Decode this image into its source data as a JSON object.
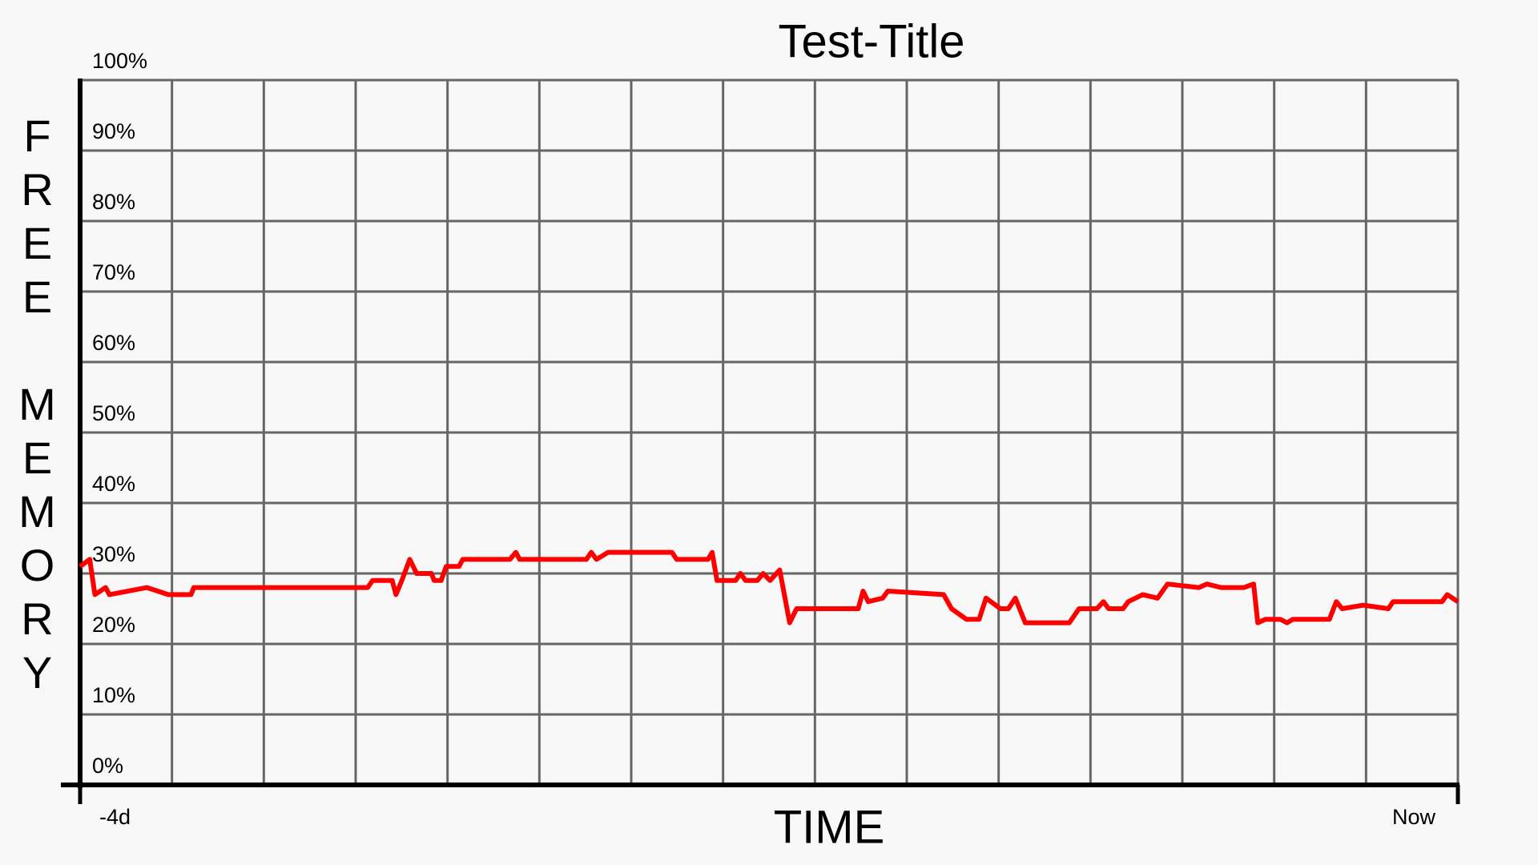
{
  "chart_data": {
    "type": "line",
    "title": "Test-Title",
    "x_label": "TIME",
    "y_label": "FREE MEMORY",
    "xlim": [
      -4,
      0
    ],
    "xticks": [
      {
        "value": -4,
        "label": "-4d"
      },
      {
        "value": 0,
        "label": "Now"
      }
    ],
    "ylim": [
      0,
      100
    ],
    "yticks": [
      {
        "value": 0,
        "label": "0%"
      },
      {
        "value": 10,
        "label": "10%"
      },
      {
        "value": 20,
        "label": "20%"
      },
      {
        "value": 30,
        "label": "30%"
      },
      {
        "value": 40,
        "label": "40%"
      },
      {
        "value": 50,
        "label": "50%"
      },
      {
        "value": 60,
        "label": "60%"
      },
      {
        "value": 70,
        "label": "70%"
      },
      {
        "value": 80,
        "label": "80%"
      },
      {
        "value": 90,
        "label": "90%"
      },
      {
        "value": 100,
        "label": "100%"
      }
    ],
    "grid": true,
    "x": [
      -4,
      -3.972,
      -3.957,
      -3.926,
      -3.915,
      -3.806,
      -3.744,
      -3.678,
      -3.67,
      -3.165,
      -3.151,
      -3.094,
      -3.083,
      -3.066,
      -3.043,
      -3.023,
      -2.98,
      -2.972,
      -2.952,
      -2.937,
      -2.9,
      -2.889,
      -2.752,
      -2.735,
      -2.724,
      -2.53,
      -2.516,
      -2.501,
      -2.467,
      -2.282,
      -2.268,
      -2.177,
      -2.165,
      -2.151,
      -2.097,
      -2.083,
      -2.068,
      -2.034,
      -2.017,
      -1.997,
      -1.969,
      -1.94,
      -1.92,
      -1.741,
      -1.727,
      -1.712,
      -1.67,
      -1.655,
      -1.493,
      -1.47,
      -1.427,
      -1.39,
      -1.37,
      -1.342,
      -1.328,
      -1.305,
      -1.285,
      -1.256,
      -1.128,
      -1.1,
      -1.048,
      -1.029,
      -1.014,
      -0.972,
      -0.957,
      -0.915,
      -0.872,
      -0.843,
      -0.752,
      -0.729,
      -0.687,
      -0.621,
      -0.593,
      -0.581,
      -0.559,
      -0.516,
      -0.496,
      -0.479,
      -0.373,
      -0.353,
      -0.336,
      -0.274,
      -0.202,
      -0.188,
      -0.046,
      -0.031,
      0
    ],
    "series": [
      {
        "name": "Free memory",
        "color": "#ff0000",
        "values": [
          31,
          32,
          27,
          28,
          27,
          28,
          27,
          27,
          28,
          28,
          29,
          29,
          27,
          29,
          32,
          30,
          30,
          29,
          29,
          31,
          31,
          32,
          32,
          33,
          32,
          32,
          33,
          32,
          33,
          33,
          32,
          32,
          33,
          29,
          29,
          30,
          29,
          29,
          30,
          29,
          30.5,
          23,
          25,
          25,
          27.5,
          26,
          26.5,
          27.5,
          27,
          25,
          23.5,
          23.5,
          26.5,
          25.5,
          25,
          25,
          26.5,
          23,
          23,
          25,
          25,
          26,
          25,
          25,
          26,
          27,
          26.5,
          28.5,
          28,
          28.5,
          28,
          28,
          28.5,
          23,
          23.5,
          23.5,
          23,
          23.5,
          23.5,
          26,
          25,
          25.5,
          25,
          26,
          26,
          27,
          26
        ]
      }
    ]
  }
}
